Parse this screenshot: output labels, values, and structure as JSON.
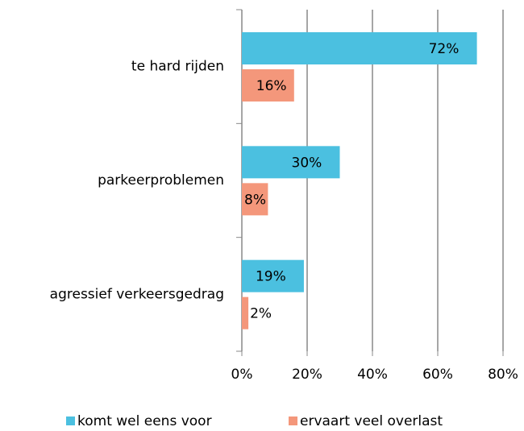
{
  "chart_data": {
    "type": "bar",
    "orientation": "horizontal",
    "categories": [
      "te hard rijden",
      "parkeerproblemen",
      "agressief verkeersgedrag"
    ],
    "series": [
      {
        "name": "komt wel eens voor",
        "color": "#4bc0e0",
        "values": [
          72,
          30,
          19
        ],
        "value_labels": [
          "72%",
          "30%",
          "19%"
        ]
      },
      {
        "name": "ervaart veel overlast",
        "color": "#f4977b",
        "values": [
          16,
          8,
          2
        ],
        "value_labels": [
          "16%",
          "8%",
          "2%"
        ]
      }
    ],
    "xlim": [
      0,
      80
    ],
    "xticks": [
      {
        "value": 0,
        "label": "0%"
      },
      {
        "value": 20,
        "label": "20%"
      },
      {
        "value": 40,
        "label": "40%"
      },
      {
        "value": 60,
        "label": "60%"
      },
      {
        "value": 80,
        "label": "80%"
      }
    ],
    "grid": true,
    "legend": "bottom"
  }
}
